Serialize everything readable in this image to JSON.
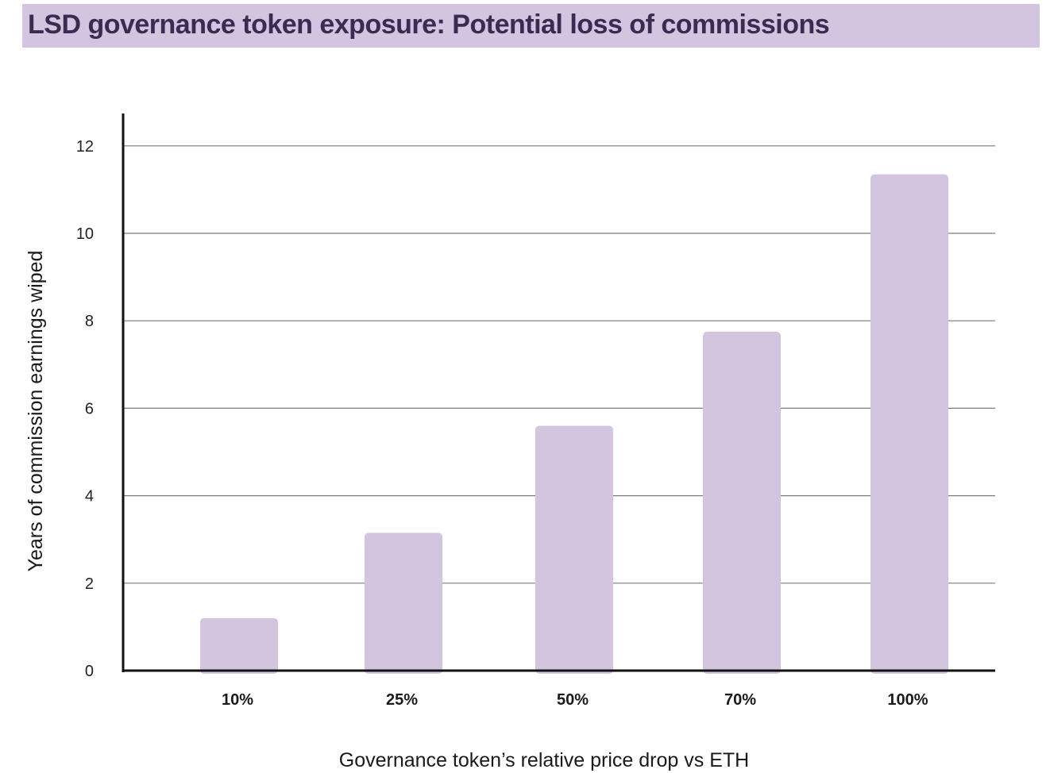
{
  "colors": {
    "banner": "#d3c5e0",
    "title_text": "#3d2a52",
    "bar": "#d3c5e0",
    "gridline": "#7a7a7a",
    "axis": "#111111"
  },
  "chart_data": {
    "type": "bar",
    "title": "LSD governance token exposure: Potential loss of commissions",
    "xlabel": "Governance token’s relative price drop vs ETH",
    "ylabel": "Years of commission earnings wiped",
    "categories": [
      "10%",
      "25%",
      "50%",
      "70%",
      "100%"
    ],
    "values": [
      1.2,
      3.15,
      5.6,
      7.75,
      11.35
    ],
    "ylim": [
      0,
      12.8
    ],
    "yticks": [
      0,
      2,
      4,
      6,
      8,
      10,
      12
    ],
    "grid": true,
    "legend": "none"
  }
}
